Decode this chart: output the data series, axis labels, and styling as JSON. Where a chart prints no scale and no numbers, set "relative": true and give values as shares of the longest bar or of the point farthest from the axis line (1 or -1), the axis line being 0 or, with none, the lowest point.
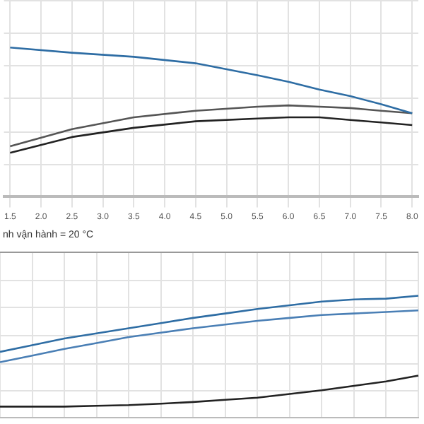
{
  "chart_data": [
    {
      "type": "line",
      "relative": true,
      "x": [
        1.5,
        2.5,
        3.5,
        4.5,
        5.5,
        6.0,
        6.5,
        7.0,
        7.5,
        8.0
      ],
      "xlim": [
        1.4,
        8.1
      ],
      "xticks": [
        1.5,
        {
          "value": 2,
          "label": "2.0"
        },
        2.5,
        {
          "value": 3,
          "label": "3.0"
        },
        3.5,
        {
          "value": 4,
          "label": "4.0"
        },
        4.5,
        {
          "value": 5,
          "label": "5.0"
        },
        5.5,
        {
          "value": 6,
          "label": "6.0"
        },
        6.5,
        {
          "value": 7,
          "label": "7.0"
        },
        7.5,
        {
          "value": 8,
          "label": "8.0"
        }
      ],
      "grid": true,
      "legend": false,
      "tick_labels": "x",
      "annotations": [
        "nh vận hành = 20 °C"
      ],
      "series": [
        {
          "color": "#2e6da4",
          "values": [
            1,
            0.965,
            0.938,
            0.894,
            0.814,
            0.77,
            0.717,
            0.673,
            0.619,
            0.558
          ]
        },
        {
          "color": "#555555",
          "values": [
            0.336,
            0.451,
            0.531,
            0.575,
            0.602,
            0.611,
            0.602,
            0.593,
            0.575,
            0.558
          ]
        },
        {
          "color": "#222222",
          "values": [
            0.292,
            0.398,
            0.46,
            0.504,
            0.522,
            0.531,
            0.531,
            0.513,
            0.496,
            0.478
          ]
        }
      ]
    },
    {
      "type": "line",
      "relative": true,
      "categories": [
        null,
        null,
        null,
        null,
        null,
        null,
        null,
        null,
        null,
        null,
        null,
        null,
        null,
        null
      ],
      "grid": true,
      "legend": false,
      "tick_labels": false,
      "series": [
        {
          "color": "#2e6da4",
          "values": [
            0.542,
            0.596,
            0.651,
            0.693,
            0.735,
            0.777,
            0.819,
            0.855,
            0.892,
            0.922,
            0.952,
            0.97,
            0.976,
            1
          ]
        },
        {
          "color": "#4a7fb5",
          "values": [
            0.458,
            0.512,
            0.566,
            0.614,
            0.663,
            0.699,
            0.735,
            0.765,
            0.795,
            0.819,
            0.843,
            0.855,
            0.867,
            0.88
          ]
        },
        {
          "color": "#222222",
          "values": [
            0.096,
            0.096,
            0.096,
            0.102,
            0.108,
            0.12,
            0.133,
            0.151,
            0.169,
            0.199,
            0.229,
            0.265,
            0.301,
            0.349
          ]
        }
      ]
    }
  ]
}
